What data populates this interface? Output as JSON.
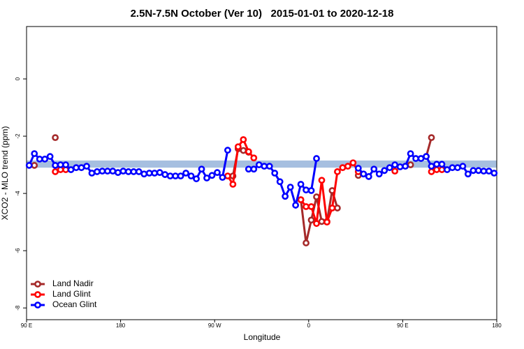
{
  "chart_data": {
    "type": "line",
    "title": "2.5N-7.5N October (Ver 10)   2015-01-01 to 2020-12-18",
    "x_label": "Longitude",
    "y_label": "XCO2 - MLO trend (ppm)",
    "xlim": [
      90,
      540
    ],
    "xticks": [
      {
        "value": 90,
        "label": "90 E"
      },
      180,
      {
        "value": 270,
        "label": "90 W"
      },
      {
        "value": 360,
        "label": "0"
      },
      {
        "value": 450,
        "label": "90 E"
      },
      {
        "value": 540,
        "label": "180"
      }
    ],
    "ylim": [
      -8.41,
      1.83
    ],
    "yticks": [
      0,
      -2,
      -4,
      -6,
      -8
    ],
    "band": {
      "range": [
        -3.1,
        -2.85
      ],
      "color": "#a6bfe0"
    },
    "legend": "bottom-left",
    "x": [
      92.5,
      97.5,
      102.5,
      107.5,
      112.5,
      117.5,
      122.5,
      127.5,
      132.5,
      137.5,
      142.5,
      147.5,
      152.5,
      157.5,
      162.5,
      167.5,
      172.5,
      177.5,
      182.5,
      187.5,
      192.5,
      197.5,
      202.5,
      207.5,
      212.5,
      217.5,
      222.5,
      227.5,
      232.5,
      237.5,
      242.5,
      247.5,
      252.5,
      257.5,
      262.5,
      267.5,
      272.5,
      277.5,
      282.5,
      287.5,
      292.5,
      297.5,
      302.5,
      307.5,
      312.5,
      317.5,
      322.5,
      327.5,
      332.5,
      337.5,
      342.5,
      347.5,
      352.5,
      357.5,
      362.5,
      367.5,
      372.5,
      377.5,
      382.5,
      387.5,
      392.5,
      397.5,
      402.5,
      407.5,
      412.5,
      417.5,
      422.5,
      427.5,
      432.5,
      437.5,
      442.5,
      447.5,
      452.5,
      457.5,
      462.5,
      467.5,
      472.5,
      477.5,
      482.5,
      487.5,
      492.5,
      497.5,
      502.5,
      507.5,
      512.5,
      517.5,
      522.5,
      527.5,
      532.5,
      537.5
    ],
    "series": [
      {
        "name": "Land Nadir",
        "color": "#a52a2a",
        "values": [
          null,
          -3.02,
          null,
          null,
          null,
          -2.05,
          null,
          null,
          null,
          null,
          null,
          null,
          null,
          null,
          null,
          null,
          null,
          null,
          null,
          null,
          null,
          null,
          null,
          null,
          null,
          null,
          null,
          null,
          null,
          null,
          null,
          null,
          null,
          null,
          null,
          null,
          null,
          null,
          null,
          -3.39,
          -2.44,
          -2.5,
          -2.56,
          null,
          null,
          null,
          null,
          null,
          null,
          null,
          null,
          null,
          -4.22,
          -5.73,
          -4.93,
          -4.12,
          -4.98,
          -4.98,
          -3.9,
          -4.51,
          null,
          null,
          null,
          -3.37,
          null,
          null,
          null,
          null,
          null,
          null,
          null,
          null,
          null,
          -3,
          null,
          null,
          -2.71,
          -2.05,
          null,
          null,
          null,
          null,
          null,
          null,
          null,
          null,
          null,
          null,
          null,
          null
        ]
      },
      {
        "name": "Land Glint",
        "color": "#ff0000",
        "values": [
          null,
          null,
          null,
          null,
          null,
          -3.24,
          -3.17,
          -3.17,
          null,
          null,
          null,
          null,
          null,
          null,
          null,
          null,
          null,
          null,
          null,
          null,
          null,
          null,
          null,
          null,
          null,
          null,
          null,
          null,
          null,
          null,
          null,
          null,
          null,
          null,
          null,
          null,
          null,
          null,
          -3.39,
          -3.68,
          -2.37,
          -2.12,
          -2.54,
          -2.76,
          null,
          null,
          null,
          null,
          null,
          null,
          null,
          null,
          -4.22,
          -4.46,
          -4.46,
          -5.05,
          -3.54,
          -5,
          -4.51,
          -3.24,
          -3.1,
          -3.05,
          -2.93,
          -3.24,
          null,
          null,
          null,
          null,
          null,
          null,
          -3.22,
          null,
          null,
          null,
          null,
          null,
          null,
          -3.24,
          -3.17,
          -3.17,
          null,
          null,
          null,
          null,
          null,
          null,
          null,
          null,
          null,
          null
        ]
      },
      {
        "name": "Ocean Glint",
        "color": "#0000ff",
        "values": [
          -3.02,
          -2.61,
          -2.8,
          -2.8,
          -2.71,
          -3.02,
          -3,
          -3,
          -3.17,
          -3.1,
          -3.1,
          -3.05,
          -3.29,
          -3.24,
          -3.22,
          -3.22,
          -3.22,
          -3.27,
          -3.22,
          -3.24,
          -3.24,
          -3.24,
          -3.32,
          -3.29,
          -3.29,
          -3.27,
          -3.34,
          -3.39,
          -3.39,
          -3.39,
          -3.29,
          -3.39,
          -3.49,
          -3.15,
          -3.46,
          -3.37,
          -3.27,
          -3.44,
          -2.49,
          null,
          null,
          null,
          -3.15,
          -3.15,
          -3,
          -3.05,
          -3.05,
          -3.29,
          -3.59,
          -4.1,
          -3.78,
          -4.41,
          -3.68,
          -3.88,
          -3.9,
          -2.78,
          null,
          null,
          null,
          null,
          null,
          null,
          null,
          -3.12,
          -3.32,
          -3.41,
          -3.15,
          -3.32,
          -3.2,
          -3.1,
          -3,
          -3.07,
          -3.05,
          -2.61,
          -2.78,
          -2.78,
          -2.71,
          -3.05,
          -2.98,
          -2.98,
          -3.17,
          -3.1,
          -3.1,
          -3.05,
          -3.32,
          -3.2,
          -3.2,
          -3.22,
          -3.22,
          -3.29
        ]
      }
    ]
  }
}
